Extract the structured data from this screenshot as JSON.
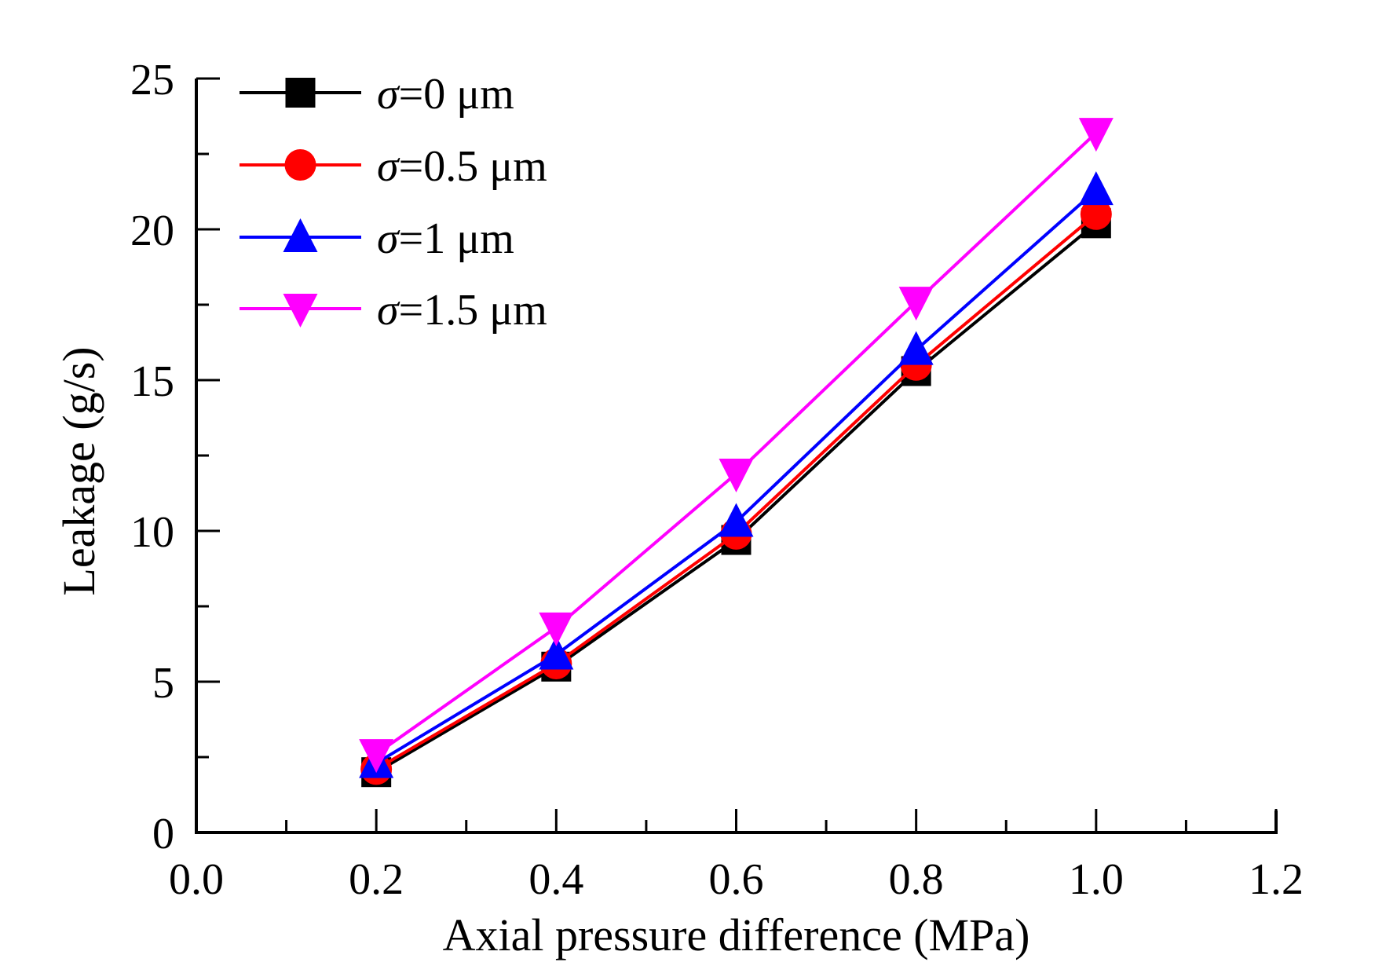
{
  "chart_data": {
    "type": "line",
    "title": "",
    "xlabel": "Axial pressure difference (MPa)",
    "ylabel": "Leakage (g/s)",
    "xlim": [
      0.0,
      1.2
    ],
    "ylim": [
      0,
      25
    ],
    "x_major_ticks": [
      0.0,
      0.2,
      0.4,
      0.6,
      0.8,
      1.0,
      1.2
    ],
    "x_tick_labels": [
      "0.0",
      "0.2",
      "0.4",
      "0.6",
      "0.8",
      "1.0",
      "1.2"
    ],
    "y_major_ticks": [
      0,
      5,
      10,
      15,
      20,
      25
    ],
    "y_tick_labels": [
      "0",
      "5",
      "10",
      "15",
      "20",
      "25"
    ],
    "grid": false,
    "legend_position": "top-left",
    "x": [
      0.2,
      0.4,
      0.6,
      0.8,
      1.0
    ],
    "series": [
      {
        "name": "0 μm",
        "sigma": "σ",
        "label_suffix": "=0 μm",
        "color": "#000000",
        "marker": "square",
        "values": [
          2.0,
          5.5,
          9.7,
          15.3,
          20.2
        ]
      },
      {
        "name": "0.5 μm",
        "sigma": "σ",
        "label_suffix": "=0.5 μm",
        "color": "#ff0000",
        "marker": "circle",
        "values": [
          2.1,
          5.6,
          9.9,
          15.5,
          20.5
        ]
      },
      {
        "name": "1 μm",
        "sigma": "σ",
        "label_suffix": "=1 μm",
        "color": "#0000ff",
        "marker": "triangle-up",
        "values": [
          2.3,
          5.9,
          10.3,
          16.0,
          21.3
        ]
      },
      {
        "name": "1.5 μm",
        "sigma": "σ",
        "label_suffix": "=1.5 μm",
        "color": "#ff00ff",
        "marker": "triangle-down",
        "values": [
          2.6,
          6.8,
          11.9,
          17.6,
          23.2
        ]
      }
    ]
  }
}
